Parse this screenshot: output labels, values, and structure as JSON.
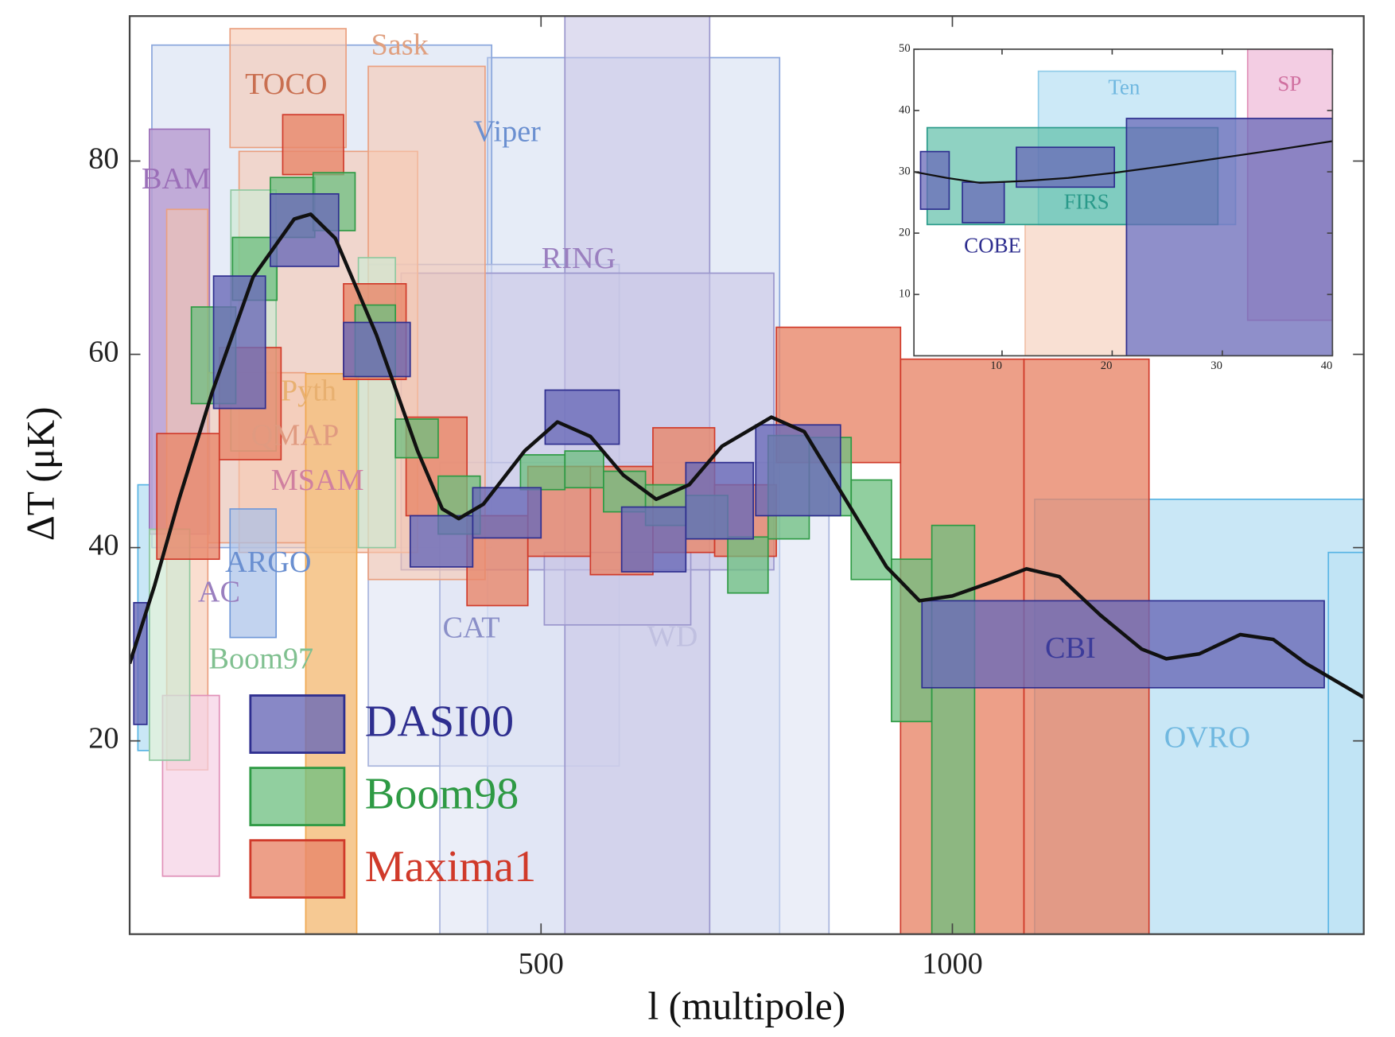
{
  "chart_data": [
    {
      "type": "rect",
      "xlabel": "l (multipole)",
      "ylabel": "ΔT (μK)",
      "xlim": [
        0,
        1500
      ],
      "ylim": [
        0,
        95
      ],
      "xticks": [
        500,
        1000
      ],
      "yticks": [
        20,
        40,
        60,
        80
      ],
      "series": [
        {
          "color": "#c8d4ee",
          "edge": "#8aa6dc",
          "opacity": 0.45,
          "boxes": [
            {
              "x": [
                435,
                790
              ],
              "y": [
                0,
                90.7
              ]
            },
            {
              "x": [
                27,
                440
              ],
              "y": [
                40,
                92
              ]
            }
          ]
        },
        {
          "color": "#bfe3f5",
          "edge": "#58b4e4",
          "opacity": 0.85,
          "boxes": [
            {
              "x": [
                1100,
                1500
              ],
              "y": [
                0,
                45
              ]
            },
            {
              "x": [
                1457,
                1500
              ],
              "y": [
                0,
                39.5
              ]
            },
            {
              "x": [
                10,
                24
              ],
              "y": [
                19,
                46.5
              ]
            }
          ]
        },
        {
          "color": "#dde3f3",
          "edge": "#a8b4dc",
          "opacity": 0.6,
          "boxes": [
            {
              "x": [
                290,
                595
              ],
              "y": [
                17.4,
                69.3
              ]
            },
            {
              "x": [
                377,
                850
              ],
              "y": [
                0,
                48.8
              ]
            }
          ]
        },
        {
          "color": "#c9c6e6",
          "edge": "#9a96cc",
          "opacity": 0.6,
          "boxes": [
            {
              "x": [
                529,
                705
              ],
              "y": [
                0,
                95
              ]
            },
            {
              "x": [
                330,
                783
              ],
              "y": [
                37.7,
                68.4
              ]
            },
            {
              "x": [
                504,
                682
              ],
              "y": [
                32,
                39.5
              ]
            }
          ]
        },
        {
          "color": "#b89bd0",
          "edge": "#9b6fb8",
          "opacity": 0.8,
          "boxes": [
            {
              "x": [
                24,
                97
              ],
              "y": [
                41.4,
                83.3
              ]
            }
          ]
        },
        {
          "color": "#f6c8b0",
          "edge": "#eaa080",
          "opacity": 0.6,
          "boxes": [
            {
              "x": [
                122,
                263
              ],
              "y": [
                81.4,
                93.7
              ]
            },
            {
              "x": [
                133,
                350
              ],
              "y": [
                39.5,
                81
              ]
            },
            {
              "x": [
                290,
                432
              ],
              "y": [
                36.7,
                89.8
              ]
            },
            {
              "x": [
                95,
                214
              ],
              "y": [
                40.5,
                58.1
              ]
            },
            {
              "x": [
                45,
                95
              ],
              "y": [
                17,
                75
              ]
            }
          ]
        },
        {
          "color": "#f5c080",
          "edge": "#f0a850",
          "opacity": 0.85,
          "boxes": [
            {
              "x": [
                214,
                276
              ],
              "y": [
                0,
                58
              ]
            }
          ]
        },
        {
          "color": "#f5d0e4",
          "edge": "#e090b8",
          "opacity": 0.7,
          "boxes": [
            {
              "x": [
                40,
                109
              ],
              "y": [
                6,
                24.7
              ]
            }
          ]
        },
        {
          "color": "#a8c0e8",
          "edge": "#7098d8",
          "opacity": 0.7,
          "boxes": [
            {
              "x": [
                122,
                178
              ],
              "y": [
                30.7,
                44
              ]
            }
          ]
        },
        {
          "color": "#cfe9d4",
          "edge": "#90c8a0",
          "opacity": 0.7,
          "boxes": [
            {
              "x": [
                24,
                73
              ],
              "y": [
                18,
                41.9
              ]
            },
            {
              "x": [
                123,
                178
              ],
              "y": [
                50,
                77
              ]
            },
            {
              "x": [
                278,
                323
              ],
              "y": [
                40,
                70
              ]
            }
          ]
        },
        {
          "name": "Maxima1",
          "color": "#e8876a",
          "edge": "#d03a2a",
          "opacity": 0.8,
          "boxes": [
            {
              "x": [
                33,
                109
              ],
              "y": [
                38.8,
                51.8
              ]
            },
            {
              "x": [
                109,
                184
              ],
              "y": [
                49.1,
                60.7
              ]
            },
            {
              "x": [
                186,
                260
              ],
              "y": [
                78.6,
                84.8
              ]
            },
            {
              "x": [
                260,
                336
              ],
              "y": [
                57.4,
                67.3
              ]
            },
            {
              "x": [
                336,
                410
              ],
              "y": [
                43.3,
                53.5
              ]
            },
            {
              "x": [
                410,
                484
              ],
              "y": [
                34,
                43.3
              ]
            },
            {
              "x": [
                484,
                560
              ],
              "y": [
                39.1,
                48.4
              ]
            },
            {
              "x": [
                560,
                636
              ],
              "y": [
                37.2,
                48.4
              ]
            },
            {
              "x": [
                636,
                711
              ],
              "y": [
                39.5,
                52.4
              ]
            },
            {
              "x": [
                711,
                786
              ],
              "y": [
                39.1,
                46.5
              ]
            },
            {
              "x": [
                786,
                937
              ],
              "y": [
                48.8,
                62.8
              ]
            },
            {
              "x": [
                937,
                1087
              ],
              "y": [
                0,
                59.5
              ]
            },
            {
              "x": [
                1087,
                1239
              ],
              "y": [
                0,
                59.5
              ]
            }
          ]
        },
        {
          "name": "Boom98",
          "color": "#6cbf7f",
          "edge": "#2e9a44",
          "opacity": 0.75,
          "boxes": [
            {
              "x": [
                75,
                129
              ],
              "y": [
                54.9,
                64.9
              ]
            },
            {
              "x": [
                125,
                179
              ],
              "y": [
                65.6,
                72.1
              ]
            },
            {
              "x": [
                171,
                225
              ],
              "y": [
                72.1,
                78.3
              ]
            },
            {
              "x": [
                223,
                274
              ],
              "y": [
                72.8,
                78.8
              ]
            },
            {
              "x": [
                274,
                323
              ],
              "y": [
                57.7,
                65.1
              ]
            },
            {
              "x": [
                323,
                375
              ],
              "y": [
                49.3,
                53.3
              ]
            },
            {
              "x": [
                375,
                426
              ],
              "y": [
                41.4,
                47.4
              ]
            },
            {
              "x": [
                475,
                529
              ],
              "y": [
                46,
                49.6
              ]
            },
            {
              "x": [
                529,
                576
              ],
              "y": [
                46.2,
                50
              ]
            },
            {
              "x": [
                576,
                627
              ],
              "y": [
                43.7,
                47.9
              ]
            },
            {
              "x": [
                627,
                676
              ],
              "y": [
                42.3,
                46.5
              ]
            },
            {
              "x": [
                676,
                727
              ],
              "y": [
                40.9,
                45.4
              ]
            },
            {
              "x": [
                727,
                776
              ],
              "y": [
                35.3,
                41.1
              ]
            },
            {
              "x": [
                776,
                826
              ],
              "y": [
                40.9,
                51.6
              ]
            },
            {
              "x": [
                826,
                877
              ],
              "y": [
                43.3,
                51.4
              ]
            },
            {
              "x": [
                877,
                926
              ],
              "y": [
                36.7,
                47
              ]
            },
            {
              "x": [
                926,
                975
              ],
              "y": [
                22,
                38.8
              ]
            },
            {
              "x": [
                975,
                1027
              ],
              "y": [
                0,
                42.3
              ]
            }
          ]
        },
        {
          "name": "DASI00",
          "color": "#6a6ab8",
          "edge": "#2e2e8f",
          "opacity": 0.8,
          "boxes": [
            {
              "x": [
                5,
                21
              ],
              "y": [
                21.7,
                34.3
              ]
            },
            {
              "x": [
                102,
                165
              ],
              "y": [
                54.4,
                68.1
              ]
            },
            {
              "x": [
                171,
                254
              ],
              "y": [
                69.1,
                76.6
              ]
            },
            {
              "x": [
                260,
                341
              ],
              "y": [
                57.7,
                63.3
              ]
            },
            {
              "x": [
                341,
                417
              ],
              "y": [
                38,
                43.3
              ]
            },
            {
              "x": [
                417,
                500
              ],
              "y": [
                41,
                46.2
              ]
            },
            {
              "x": [
                505,
                595
              ],
              "y": [
                50.7,
                56.3
              ]
            },
            {
              "x": [
                598,
                676
              ],
              "y": [
                37.5,
                44.2
              ]
            },
            {
              "x": [
                676,
                758
              ],
              "y": [
                40.9,
                48.8
              ]
            },
            {
              "x": [
                761,
                864
              ],
              "y": [
                43.3,
                52.7
              ]
            },
            {
              "x": [
                963,
                1452
              ],
              "y": [
                25.5,
                34.5
              ]
            }
          ]
        }
      ],
      "curve": {
        "color": "#111111",
        "x": [
          0,
          30,
          60,
          100,
          150,
          200,
          220,
          250,
          300,
          350,
          380,
          400,
          430,
          480,
          520,
          560,
          600,
          640,
          680,
          720,
          780,
          820,
          870,
          920,
          960,
          1000,
          1050,
          1090,
          1130,
          1180,
          1230,
          1260,
          1300,
          1350,
          1390,
          1430,
          1500
        ],
        "y": [
          28,
          36,
          45,
          56,
          68,
          74,
          74.5,
          72,
          62,
          50,
          44,
          43,
          44.5,
          50,
          53,
          51.5,
          47.5,
          45,
          46.5,
          50.5,
          53.5,
          52,
          45,
          38,
          34.5,
          35,
          36.5,
          37.8,
          37,
          33,
          29.5,
          28.5,
          29,
          31,
          30.5,
          28,
          24.5
        ]
      },
      "annotations": [
        {
          "text": "BAM",
          "color": "#9b6fb8"
        },
        {
          "text": "TOCO",
          "color": "#c96f50"
        },
        {
          "text": "Sask",
          "color": "#e0a080"
        },
        {
          "text": "Viper",
          "color": "#6a8fd0"
        },
        {
          "text": "RING",
          "color": "#9a7fbf"
        },
        {
          "text": "Pyth",
          "color": "#e8b070"
        },
        {
          "text": "QMAP",
          "color": "#e09a80"
        },
        {
          "text": "MSAM",
          "color": "#d080a0"
        },
        {
          "text": "ARGO",
          "color": "#6a8fd0"
        },
        {
          "text": "AC",
          "color": "#9a7fbf"
        },
        {
          "text": "Boom97",
          "color": "#80c090"
        },
        {
          "text": "CAT",
          "color": "#8a8fc8"
        },
        {
          "text": "WD",
          "color": "#c0c0e0"
        },
        {
          "text": "CBI",
          "color": "#3b3b9a"
        },
        {
          "text": "OVRO",
          "color": "#70b8e0"
        }
      ]
    },
    {
      "type": "rect",
      "xlim": [
        2,
        40
      ],
      "ylim": [
        0,
        50
      ],
      "xticks": [
        10,
        20,
        30,
        40
      ],
      "yticks": [
        10,
        20,
        30,
        40,
        50
      ],
      "series": [
        {
          "color": "#f8d8c8",
          "edge": "#f0c0a8",
          "opacity": 0.8,
          "boxes": [
            {
              "x": [
                12.1,
                21.3
              ],
              "y": [
                0,
                21.4
              ]
            }
          ]
        },
        {
          "color": "#bfe3f5",
          "edge": "#90cce8",
          "opacity": 0.8,
          "boxes": [
            {
              "x": [
                13.3,
                31.2
              ],
              "y": [
                21.4,
                46.4
              ]
            }
          ]
        },
        {
          "color": "#f0c0dc",
          "edge": "#e090b8",
          "opacity": 0.8,
          "boxes": [
            {
              "x": [
                32.3,
                40
              ],
              "y": [
                5.8,
                50
              ]
            }
          ]
        },
        {
          "color": "#5fbfa8",
          "edge": "#2a9a8a",
          "opacity": 0.7,
          "boxes": [
            {
              "x": [
                3.2,
                29.6
              ],
              "y": [
                21.4,
                37.2
              ]
            }
          ]
        },
        {
          "color": "#6a6ab8",
          "edge": "#2e2e8f",
          "opacity": 0.75,
          "boxes": [
            {
              "x": [
                2.6,
                5.2
              ],
              "y": [
                23.9,
                33.3
              ]
            },
            {
              "x": [
                6.4,
                10.2
              ],
              "y": [
                21.7,
                28.3
              ]
            },
            {
              "x": [
                11.3,
                20.2
              ],
              "y": [
                27.5,
                34
              ]
            },
            {
              "x": [
                21.3,
                40
              ],
              "y": [
                0,
                38.7
              ]
            }
          ]
        }
      ],
      "curve": {
        "color": "#111111",
        "x": [
          2,
          5,
          8,
          12,
          16,
          20,
          25,
          30,
          35,
          40
        ],
        "y": [
          30,
          29,
          28.2,
          28.5,
          29,
          29.8,
          31,
          32.3,
          33.6,
          35
        ]
      },
      "annotations": [
        {
          "text": "COBE",
          "color": "#2e2e8f"
        },
        {
          "text": "FIRS",
          "color": "#2a9a8a"
        },
        {
          "text": "Ten",
          "color": "#70b8e0"
        },
        {
          "text": "SP",
          "color": "#d070a0"
        }
      ]
    }
  ]
}
